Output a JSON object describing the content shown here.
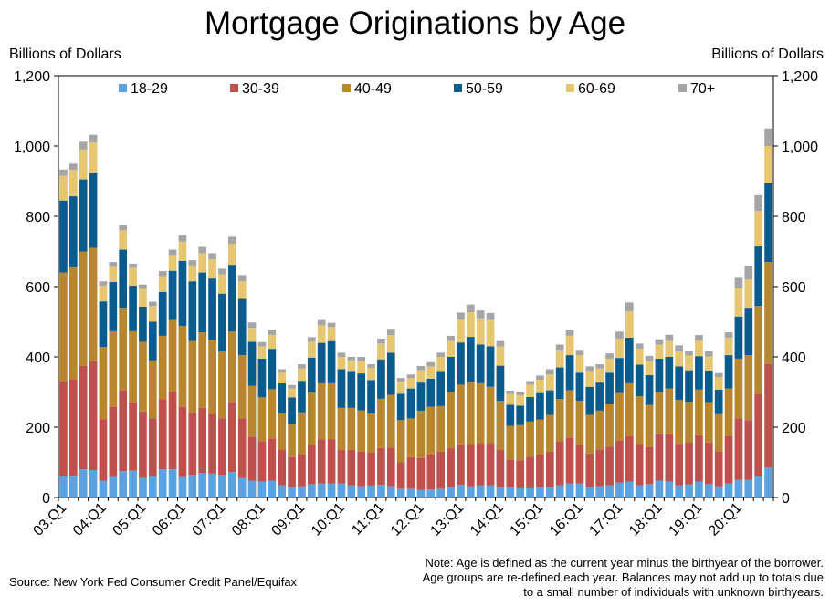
{
  "title": "Mortgage Originations by Age",
  "left_axis_label": "Billions of Dollars",
  "right_axis_label": "Billions of Dollars",
  "source": "Source: New York Fed Consumer Credit Panel/Equifax",
  "note": "Note: Age is defined as the current year minus the birthyear of the borrower. Age groups are re-defined each year. Balances may not add up to totals due to a small number of individuals with unknown birthyears.",
  "chart_data": {
    "type": "bar",
    "stacked": true,
    "title": "Mortgage Originations by Age",
    "ylabel": "Billions of Dollars",
    "ylim": [
      0,
      1200
    ],
    "yticks": [
      "0",
      "200",
      "400",
      "600",
      "800",
      "1,000",
      "1,200"
    ],
    "legend_position": "top",
    "categories": [
      "03:Q1",
      "03:Q2",
      "03:Q3",
      "03:Q4",
      "04:Q1",
      "04:Q2",
      "04:Q3",
      "04:Q4",
      "05:Q1",
      "05:Q2",
      "05:Q3",
      "05:Q4",
      "06:Q1",
      "06:Q2",
      "06:Q3",
      "06:Q4",
      "07:Q1",
      "07:Q2",
      "07:Q3",
      "07:Q4",
      "08:Q1",
      "08:Q2",
      "08:Q3",
      "08:Q4",
      "09:Q1",
      "09:Q2",
      "09:Q3",
      "09:Q4",
      "10:Q1",
      "10:Q2",
      "10:Q3",
      "10:Q4",
      "11:Q1",
      "11:Q2",
      "11:Q3",
      "11:Q4",
      "12:Q1",
      "12:Q2",
      "12:Q3",
      "12:Q4",
      "13:Q1",
      "13:Q2",
      "13:Q3",
      "13:Q4",
      "14:Q1",
      "14:Q2",
      "14:Q3",
      "14:Q4",
      "15:Q1",
      "15:Q2",
      "15:Q3",
      "15:Q4",
      "16:Q1",
      "16:Q2",
      "16:Q3",
      "16:Q4",
      "17:Q1",
      "17:Q2",
      "17:Q3",
      "17:Q4",
      "18:Q1",
      "18:Q2",
      "18:Q3",
      "18:Q4",
      "19:Q1",
      "19:Q2",
      "19:Q3",
      "19:Q4",
      "20:Q1",
      "20:Q2",
      "20:Q3",
      "20:Q4"
    ],
    "x_tick_labels": [
      "03:Q1",
      "04:Q1",
      "05:Q1",
      "06:Q1",
      "07:Q1",
      "08:Q1",
      "09:Q1",
      "10:Q1",
      "11:Q1",
      "12:Q1",
      "13:Q1",
      "14:Q1",
      "15:Q1",
      "16:Q1",
      "17:Q1",
      "18:Q1",
      "19:Q1",
      "20:Q1"
    ],
    "series": [
      {
        "name": "18-29",
        "color": "#5ba3e0",
        "values": [
          60,
          62,
          80,
          78,
          48,
          58,
          75,
          76,
          55,
          60,
          80,
          80,
          58,
          65,
          70,
          68,
          65,
          72,
          55,
          48,
          45,
          48,
          35,
          30,
          32,
          38,
          40,
          40,
          40,
          35,
          32,
          34,
          36,
          32,
          25,
          25,
          22,
          23,
          25,
          30,
          36,
          32,
          35,
          35,
          30,
          30,
          26,
          26,
          30,
          30,
          35,
          40,
          40,
          30,
          32,
          35,
          42,
          45,
          35,
          38,
          48,
          45,
          35,
          37,
          45,
          38,
          32,
          40,
          50,
          50,
          60,
          85
        ]
      },
      {
        "name": "30-39",
        "color": "#c0504d",
        "values": [
          270,
          275,
          295,
          310,
          175,
          200,
          230,
          195,
          190,
          165,
          200,
          220,
          200,
          175,
          185,
          170,
          160,
          200,
          170,
          125,
          115,
          120,
          100,
          85,
          90,
          110,
          125,
          125,
          95,
          100,
          98,
          95,
          105,
          110,
          75,
          90,
          90,
          100,
          105,
          110,
          115,
          120,
          120,
          120,
          105,
          78,
          80,
          90,
          92,
          100,
          125,
          130,
          110,
          95,
          105,
          110,
          120,
          130,
          118,
          105,
          132,
          135,
          118,
          120,
          132,
          118,
          100,
          135,
          175,
          170,
          235,
          295
        ]
      },
      {
        "name": "40-49",
        "color": "#b8862e",
        "values": [
          310,
          320,
          325,
          322,
          205,
          215,
          235,
          202,
          198,
          165,
          180,
          205,
          230,
          205,
          215,
          210,
          190,
          200,
          180,
          145,
          125,
          140,
          105,
          95,
          120,
          150,
          160,
          160,
          120,
          120,
          118,
          110,
          140,
          150,
          120,
          110,
          135,
          135,
          130,
          160,
          170,
          175,
          170,
          160,
          140,
          96,
          100,
          100,
          100,
          105,
          120,
          135,
          125,
          110,
          110,
          120,
          135,
          150,
          135,
          120,
          120,
          130,
          125,
          115,
          130,
          115,
          105,
          135,
          170,
          185,
          250,
          290
        ]
      },
      {
        "name": "50-59",
        "color": "#0a5c8f",
        "values": [
          205,
          200,
          205,
          215,
          130,
          140,
          165,
          130,
          100,
          110,
          125,
          140,
          185,
          170,
          170,
          175,
          165,
          190,
          160,
          125,
          110,
          115,
          85,
          75,
          90,
          100,
          115,
          120,
          110,
          105,
          105,
          95,
          112,
          120,
          75,
          85,
          80,
          80,
          100,
          100,
          120,
          130,
          110,
          115,
          100,
          60,
          55,
          70,
          75,
          70,
          90,
          100,
          80,
          80,
          80,
          90,
          100,
          130,
          90,
          85,
          95,
          90,
          95,
          90,
          95,
          90,
          70,
          95,
          120,
          135,
          170,
          225
        ]
      },
      {
        "name": "60-69",
        "color": "#e6c670",
        "values": [
          70,
          75,
          85,
          85,
          45,
          45,
          55,
          50,
          50,
          45,
          45,
          45,
          55,
          45,
          55,
          55,
          55,
          60,
          50,
          40,
          35,
          40,
          30,
          25,
          35,
          45,
          50,
          40,
          35,
          30,
          35,
          35,
          45,
          50,
          35,
          30,
          35,
          35,
          40,
          45,
          65,
          70,
          75,
          75,
          55,
          30,
          30,
          35,
          38,
          45,
          50,
          55,
          50,
          45,
          40,
          40,
          55,
          75,
          45,
          40,
          40,
          45,
          45,
          42,
          45,
          40,
          35,
          50,
          80,
          80,
          100,
          105
        ]
      },
      {
        "name": "70+",
        "color": "#a5a5a8",
        "values": [
          18,
          18,
          22,
          22,
          12,
          12,
          15,
          12,
          13,
          12,
          14,
          15,
          18,
          15,
          18,
          17,
          16,
          20,
          18,
          15,
          12,
          15,
          10,
          10,
          12,
          13,
          15,
          12,
          12,
          10,
          12,
          10,
          14,
          18,
          10,
          10,
          12,
          12,
          12,
          15,
          20,
          22,
          22,
          20,
          15,
          10,
          10,
          10,
          12,
          15,
          15,
          18,
          15,
          13,
          12,
          15,
          20,
          25,
          15,
          15,
          15,
          18,
          15,
          14,
          15,
          15,
          12,
          15,
          30,
          40,
          45,
          50
        ]
      }
    ]
  }
}
